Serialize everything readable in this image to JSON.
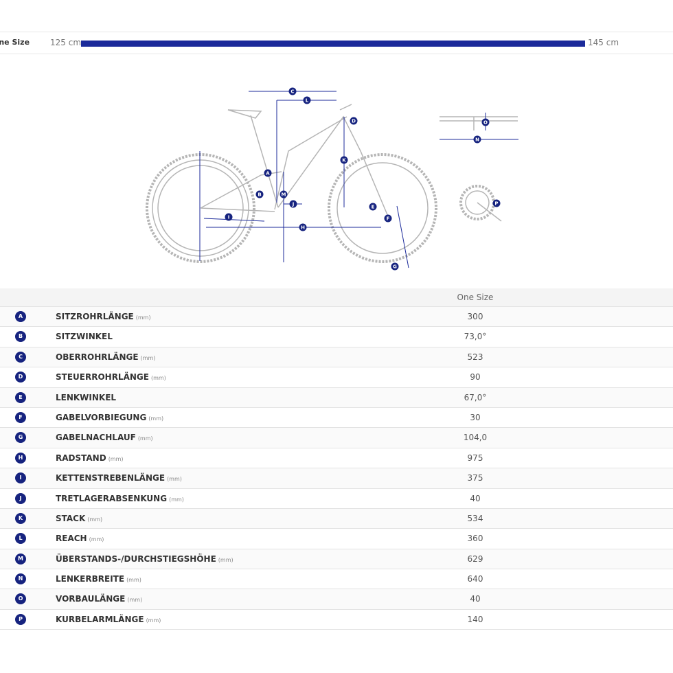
{
  "size_bar": {
    "label": "One Size",
    "min": "125 cm",
    "max": "145 cm"
  },
  "table": {
    "header": "One Size",
    "rows": [
      {
        "badge": "A",
        "name": "SITZROHRLÄNGE",
        "unit": "(mm)",
        "value": "300"
      },
      {
        "badge": "B",
        "name": "SITZWINKEL",
        "value": "73,0°"
      },
      {
        "badge": "C",
        "name": "OBERROHRLÄNGE",
        "unit": "(mm)",
        "value": "523"
      },
      {
        "badge": "D",
        "name": "STEUERROHRLÄNGE",
        "unit": "(mm)",
        "value": "90"
      },
      {
        "badge": "E",
        "name": "LENKWINKEL",
        "value": "67,0°"
      },
      {
        "badge": "F",
        "name": "GABELVORBIEGUNG",
        "unit": "(mm)",
        "value": "30"
      },
      {
        "badge": "G",
        "name": "GABELNACHLAUF",
        "unit": "(mm)",
        "value": "104,0"
      },
      {
        "badge": "H",
        "name": "RADSTAND",
        "unit": "(mm)",
        "value": "975"
      },
      {
        "badge": "I",
        "name": "KETTENSTREBENLÄNGE",
        "unit": "(mm)",
        "value": "375"
      },
      {
        "badge": "J",
        "name": "TRETLAGERABSENKUNG",
        "unit": "(mm)",
        "value": "40"
      },
      {
        "badge": "K",
        "name": "STACK",
        "unit": "(mm)",
        "value": "534"
      },
      {
        "badge": "L",
        "name": "REACH",
        "unit": "(mm)",
        "value": "360"
      },
      {
        "badge": "M",
        "name": "ÜBERSTANDS-/DURCHSTIEGSHÖHE",
        "unit": "(mm)",
        "value": "629"
      },
      {
        "badge": "N",
        "name": "LENKERBREITE",
        "unit": "(mm)",
        "value": "640"
      },
      {
        "badge": "O",
        "name": "VORBAULÄNGE",
        "unit": "(mm)",
        "value": "40"
      },
      {
        "badge": "P",
        "name": "KURBELARMLÄNGE",
        "unit": "(mm)",
        "value": "140"
      }
    ]
  }
}
